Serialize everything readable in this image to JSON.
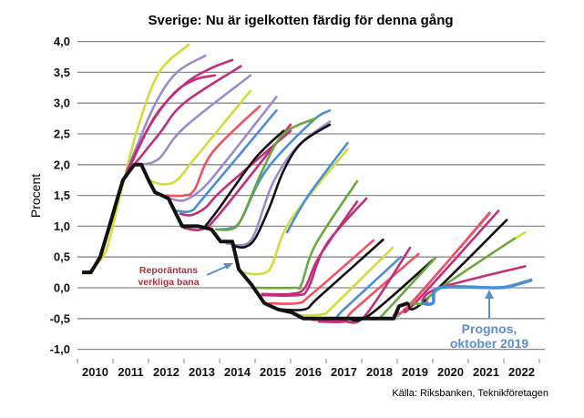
{
  "chart_data": {
    "type": "line",
    "title": "Sverige: Nu är igelkotten färdig för denna gång",
    "ylabel": "Procent",
    "xlabel": "",
    "ylim": [
      -1.0,
      4.0
    ],
    "xlim": [
      2010,
      2023
    ],
    "grid": true,
    "y_ticks": [
      "4,0",
      "3,5",
      "3,0",
      "2,5",
      "2,0",
      "1,5",
      "1,0",
      "0,5",
      "0,0",
      "-0,5",
      "-1,0"
    ],
    "y_tick_values": [
      4.0,
      3.5,
      3.0,
      2.5,
      2.0,
      1.5,
      1.0,
      0.5,
      0.0,
      -0.5,
      -1.0
    ],
    "x_ticks": [
      "2010",
      "2011",
      "2012",
      "2013",
      "2014",
      "2015",
      "2016",
      "2017",
      "2018",
      "2019",
      "2020",
      "2021",
      "2022"
    ],
    "source": "Källa: Riksbanken, Teknikföretagen",
    "annotations": {
      "actual": [
        "Reporäntans",
        "verkliga bana"
      ],
      "forecast": [
        "Prognos,",
        "oktober 2019"
      ]
    },
    "colors": {
      "yellow": "#d2dc3a",
      "purple": "#9a8cc8",
      "magenta": "#c02e7c",
      "red": "#f2505e",
      "blue": "#4a8ed6",
      "green": "#68a83c",
      "black": "#111111",
      "annotation_red": "#a8323a",
      "annotation_blue": "#5b8fd0"
    },
    "actual": {
      "color": "black",
      "points": [
        [
          2010.13,
          0.25
        ],
        [
          2010.38,
          0.25
        ],
        [
          2010.64,
          0.5
        ],
        [
          2010.9,
          1.0
        ],
        [
          2011.1,
          1.4
        ],
        [
          2011.28,
          1.75
        ],
        [
          2011.6,
          2.0
        ],
        [
          2011.8,
          2.0
        ],
        [
          2012.0,
          1.75
        ],
        [
          2012.18,
          1.55
        ],
        [
          2012.38,
          1.5
        ],
        [
          2012.56,
          1.45
        ],
        [
          2012.95,
          1.0
        ],
        [
          2013.41,
          1.0
        ],
        [
          2013.77,
          0.95
        ],
        [
          2014.03,
          0.75
        ],
        [
          2014.36,
          0.75
        ],
        [
          2014.54,
          0.3
        ],
        [
          2014.9,
          0.05
        ],
        [
          2015.26,
          -0.25
        ],
        [
          2015.64,
          -0.35
        ],
        [
          2016.03,
          -0.4
        ],
        [
          2016.36,
          -0.5
        ],
        [
          2018.03,
          -0.5
        ],
        [
          2018.9,
          -0.5
        ],
        [
          2019.05,
          -0.3
        ],
        [
          2019.3,
          -0.25
        ]
      ]
    },
    "forecasts": [
      {
        "color": "yellow",
        "points": [
          [
            2010.3,
            0.25
          ],
          [
            2010.8,
            0.6
          ],
          [
            2011.2,
            1.5
          ],
          [
            2011.7,
            2.6
          ],
          [
            2012.3,
            3.5
          ],
          [
            2013.13,
            3.95
          ]
        ]
      },
      {
        "color": "purple",
        "points": [
          [
            2011.2,
            1.6
          ],
          [
            2011.6,
            2.2
          ],
          [
            2012.2,
            3.0
          ],
          [
            2012.8,
            3.5
          ],
          [
            2013.6,
            3.77
          ]
        ]
      },
      {
        "color": "magenta",
        "points": [
          [
            2011.4,
            1.9
          ],
          [
            2012.0,
            2.6
          ],
          [
            2012.7,
            3.15
          ],
          [
            2013.3,
            3.38
          ],
          [
            2013.87,
            3.45
          ]
        ]
      },
      {
        "color": "magenta",
        "points": [
          [
            2011.5,
            2.0
          ],
          [
            2012.2,
            2.8
          ],
          [
            2013.0,
            3.3
          ],
          [
            2013.7,
            3.55
          ],
          [
            2014.36,
            3.7
          ]
        ]
      },
      {
        "color": "magenta",
        "points": [
          [
            2011.6,
            2.0
          ],
          [
            2012.3,
            2.5
          ],
          [
            2013.0,
            3.0
          ],
          [
            2014.6,
            3.6
          ]
        ]
      },
      {
        "color": "purple",
        "points": [
          [
            2011.8,
            2.0
          ],
          [
            2012.3,
            2.1
          ],
          [
            2013.0,
            2.6
          ],
          [
            2014.87,
            3.45
          ]
        ]
      },
      {
        "color": "yellow",
        "points": [
          [
            2012.0,
            1.75
          ],
          [
            2012.4,
            1.68
          ],
          [
            2012.8,
            1.75
          ],
          [
            2013.3,
            2.1
          ],
          [
            2014.87,
            3.2
          ]
        ]
      },
      {
        "color": "red",
        "points": [
          [
            2012.5,
            1.5
          ],
          [
            2013.0,
            1.5
          ],
          [
            2013.3,
            1.6
          ],
          [
            2013.8,
            2.2
          ],
          [
            2015.13,
            2.95
          ]
        ]
      },
      {
        "color": "purple",
        "points": [
          [
            2012.6,
            1.45
          ],
          [
            2013.0,
            1.42
          ],
          [
            2013.5,
            1.6
          ],
          [
            2014.1,
            2.0
          ],
          [
            2015.6,
            3.1
          ]
        ]
      },
      {
        "color": "blue",
        "points": [
          [
            2012.8,
            1.25
          ],
          [
            2013.2,
            1.25
          ],
          [
            2013.6,
            1.5
          ],
          [
            2015.6,
            2.88
          ]
        ]
      },
      {
        "color": "magenta",
        "points": [
          [
            2012.9,
            1.2
          ],
          [
            2013.2,
            1.18
          ],
          [
            2013.6,
            1.3
          ],
          [
            2014.1,
            1.6
          ],
          [
            2016.0,
            2.55
          ]
        ]
      },
      {
        "color": "magenta",
        "points": [
          [
            2013.0,
            0.97
          ],
          [
            2013.5,
            0.95
          ],
          [
            2014.0,
            1.2
          ],
          [
            2016.0,
            2.65
          ]
        ]
      },
      {
        "color": "black",
        "points": [
          [
            2013.6,
            1.0
          ],
          [
            2014.0,
            1.3
          ],
          [
            2015.0,
            2.1
          ],
          [
            2015.8,
            2.55
          ]
        ]
      },
      {
        "color": "blue",
        "points": [
          [
            2014.0,
            0.95
          ],
          [
            2014.3,
            0.97
          ],
          [
            2014.6,
            1.1
          ],
          [
            2015.3,
            1.9
          ],
          [
            2016.6,
            2.7
          ],
          [
            2017.1,
            2.88
          ]
        ]
      },
      {
        "color": "green",
        "points": [
          [
            2013.9,
            0.95
          ],
          [
            2014.3,
            0.95
          ],
          [
            2014.6,
            1.1
          ],
          [
            2015.2,
            1.9
          ],
          [
            2015.8,
            2.5
          ],
          [
            2016.7,
            2.75
          ]
        ]
      },
      {
        "color": "purple",
        "points": [
          [
            2014.2,
            0.72
          ],
          [
            2014.7,
            0.7
          ],
          [
            2015.0,
            0.9
          ],
          [
            2015.5,
            1.7
          ],
          [
            2016.2,
            2.3
          ],
          [
            2017.1,
            2.7
          ]
        ]
      },
      {
        "color": "black",
        "points": [
          [
            2014.4,
            0.68
          ],
          [
            2014.7,
            0.66
          ],
          [
            2015.0,
            0.8
          ],
          [
            2015.4,
            1.3
          ],
          [
            2015.8,
            1.9
          ],
          [
            2016.3,
            2.35
          ],
          [
            2017.1,
            2.65
          ]
        ]
      },
      {
        "color": "yellow",
        "points": [
          [
            2014.6,
            0.25
          ],
          [
            2015.0,
            0.22
          ],
          [
            2015.3,
            0.25
          ],
          [
            2015.5,
            0.4
          ],
          [
            2016.0,
            1.1
          ],
          [
            2017.6,
            2.25
          ]
        ]
      },
      {
        "color": "blue",
        "points": [
          [
            2015.9,
            0.9
          ],
          [
            2016.5,
            1.5
          ],
          [
            2017.6,
            2.35
          ]
        ]
      },
      {
        "color": "green",
        "points": [
          [
            2014.9,
            0.0
          ],
          [
            2016.1,
            0.0
          ],
          [
            2016.3,
            0.05
          ],
          [
            2016.7,
            0.7
          ],
          [
            2017.87,
            1.73
          ]
        ]
      },
      {
        "color": "magenta",
        "points": [
          [
            2015.2,
            -0.1
          ],
          [
            2016.0,
            -0.1
          ],
          [
            2016.4,
            0.0
          ],
          [
            2016.8,
            0.5
          ],
          [
            2017.87,
            1.4
          ]
        ]
      },
      {
        "color": "magenta",
        "points": [
          [
            2015.2,
            -0.12
          ],
          [
            2016.2,
            -0.12
          ],
          [
            2016.5,
            0.0
          ],
          [
            2017.0,
            0.7
          ],
          [
            2018.13,
            1.45
          ]
        ]
      },
      {
        "color": "red",
        "points": [
          [
            2015.4,
            -0.25
          ],
          [
            2016.2,
            -0.25
          ],
          [
            2016.6,
            -0.1
          ],
          [
            2018.33,
            0.77
          ]
        ]
      },
      {
        "color": "black",
        "points": [
          [
            2015.7,
            -0.35
          ],
          [
            2016.4,
            -0.35
          ],
          [
            2016.8,
            -0.15
          ],
          [
            2018.6,
            0.78
          ]
        ]
      },
      {
        "color": "yellow",
        "points": [
          [
            2016.2,
            -0.45
          ],
          [
            2016.9,
            -0.43
          ],
          [
            2017.2,
            -0.3
          ],
          [
            2018.87,
            0.65
          ]
        ]
      },
      {
        "color": "blue",
        "points": [
          [
            2016.4,
            -0.5
          ],
          [
            2017.2,
            -0.5
          ],
          [
            2017.5,
            -0.35
          ],
          [
            2019.1,
            0.5
          ]
        ]
      },
      {
        "color": "red",
        "points": [
          [
            2016.6,
            -0.52
          ],
          [
            2017.5,
            -0.52
          ],
          [
            2017.8,
            -0.35
          ],
          [
            2019.6,
            0.55
          ]
        ]
      },
      {
        "color": "magenta",
        "points": [
          [
            2016.8,
            -0.55
          ],
          [
            2017.5,
            -0.55
          ],
          [
            2018.1,
            -0.45
          ],
          [
            2019.36,
            0.65
          ]
        ]
      },
      {
        "color": "black",
        "points": [
          [
            2017.6,
            -0.5
          ],
          [
            2018.2,
            -0.45
          ],
          [
            2020.0,
            0.45
          ]
        ]
      },
      {
        "color": "green",
        "points": [
          [
            2018.5,
            -0.5
          ],
          [
            2020.08,
            0.49
          ]
        ]
      },
      {
        "color": "purple",
        "points": [
          [
            2018.9,
            -0.45
          ],
          [
            2019.3,
            -0.3
          ],
          [
            2021.6,
            1.2
          ]
        ]
      },
      {
        "color": "red",
        "points": [
          [
            2019.0,
            -0.4
          ],
          [
            2019.4,
            -0.25
          ],
          [
            2021.6,
            1.22
          ]
        ]
      },
      {
        "color": "magenta",
        "points": [
          [
            2019.2,
            -0.35
          ],
          [
            2019.5,
            -0.25
          ],
          [
            2021.85,
            1.25
          ]
        ]
      },
      {
        "color": "black",
        "points": [
          [
            2019.3,
            -0.25
          ],
          [
            2019.7,
            -0.25
          ],
          [
            2022.08,
            1.1
          ]
        ]
      },
      {
        "color": "yellow",
        "points": [
          [
            2022.2,
            0.76
          ],
          [
            2022.6,
            0.9
          ]
        ]
      },
      {
        "color": "green",
        "points": [
          [
            2019.4,
            -0.25
          ],
          [
            2019.8,
            -0.25
          ],
          [
            2020.1,
            -0.05
          ],
          [
            2022.3,
            0.8
          ]
        ]
      },
      {
        "color": "magenta",
        "points": [
          [
            2019.7,
            -0.2
          ],
          [
            2020.2,
            0.0
          ],
          [
            2022.6,
            0.35
          ]
        ]
      }
    ],
    "latest_forecast": {
      "label": "Prognos, oktober 2019",
      "color": "blue",
      "points": [
        [
          2019.7,
          -0.25
        ],
        [
          2020.0,
          -0.25
        ],
        [
          2020.2,
          0.0
        ],
        [
          2021.75,
          0.0
        ],
        [
          2022.2,
          0.03
        ],
        [
          2022.8,
          0.13
        ]
      ]
    }
  }
}
